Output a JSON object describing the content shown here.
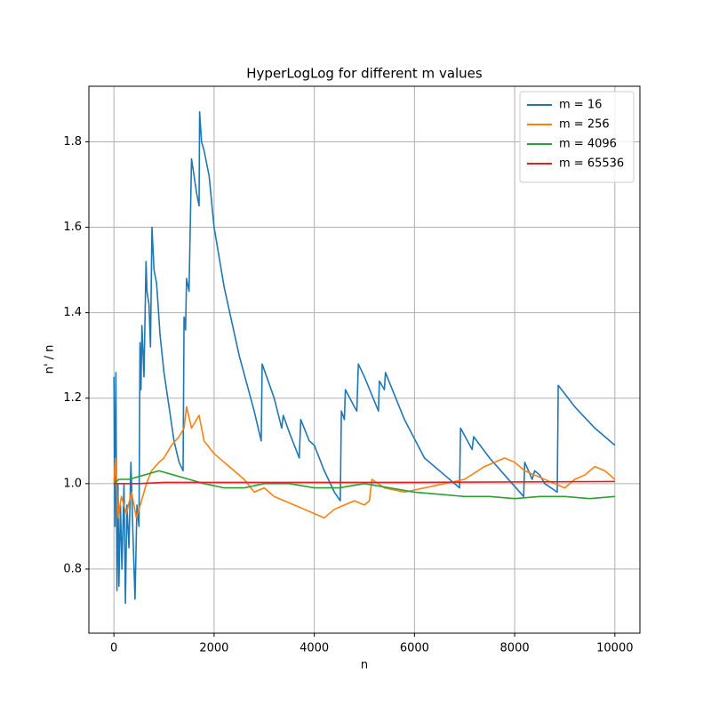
{
  "chart_data": {
    "type": "line",
    "title": "HyperLogLog for different m values",
    "xlabel": "n",
    "ylabel": "n' / n",
    "xlim": [
      -500,
      10500
    ],
    "ylim": [
      0.65,
      1.93
    ],
    "xticks": [
      0,
      2000,
      4000,
      6000,
      8000,
      10000
    ],
    "yticks": [
      0.8,
      {
        "value": 1.0,
        "label": "1.0"
      },
      1.2,
      1.4,
      1.6,
      1.8
    ],
    "grid": true,
    "legend": "upper right",
    "series": [
      {
        "name": "m = 16",
        "color": "#1f77b4",
        "x": [
          0,
          20,
          40,
          60,
          80,
          100,
          130,
          160,
          200,
          230,
          260,
          300,
          340,
          380,
          420,
          460,
          500,
          520,
          540,
          560,
          600,
          640,
          660,
          700,
          730,
          760,
          800,
          850,
          880,
          920,
          1000,
          1100,
          1200,
          1300,
          1380,
          1400,
          1430,
          1450,
          1500,
          1550,
          1600,
          1650,
          1700,
          1710,
          1750,
          1800,
          1900,
          2000,
          2200,
          2500,
          2800,
          2940,
          2960,
          3200,
          3350,
          3380,
          3500,
          3700,
          3730,
          3900,
          4000,
          4200,
          4400,
          4520,
          4540,
          4600,
          4620,
          4800,
          4850,
          4880,
          5000,
          5280,
          5300,
          5400,
          5420,
          5800,
          6200,
          6600,
          6900,
          6920,
          7150,
          7180,
          7500,
          7800,
          8180,
          8200,
          8350,
          8400,
          8500,
          8550,
          8600,
          8850,
          8870,
          9200,
          9600,
          10000
        ],
        "values": [
          1.25,
          0.9,
          1.26,
          0.75,
          1.0,
          0.76,
          0.95,
          0.8,
          1.0,
          0.72,
          0.95,
          0.85,
          1.05,
          0.88,
          0.73,
          0.95,
          0.9,
          1.33,
          1.22,
          1.37,
          1.25,
          1.52,
          1.45,
          1.42,
          1.32,
          1.6,
          1.5,
          1.47,
          1.42,
          1.35,
          1.26,
          1.18,
          1.1,
          1.05,
          1.03,
          1.39,
          1.36,
          1.48,
          1.45,
          1.76,
          1.72,
          1.68,
          1.65,
          1.87,
          1.8,
          1.78,
          1.72,
          1.6,
          1.46,
          1.3,
          1.17,
          1.1,
          1.28,
          1.2,
          1.13,
          1.16,
          1.12,
          1.06,
          1.15,
          1.1,
          1.09,
          1.03,
          0.98,
          0.96,
          1.17,
          1.15,
          1.22,
          1.18,
          1.17,
          1.28,
          1.25,
          1.17,
          1.24,
          1.22,
          1.26,
          1.15,
          1.06,
          1.02,
          0.99,
          1.13,
          1.08,
          1.11,
          1.06,
          1.02,
          0.97,
          1.05,
          1.01,
          1.03,
          1.02,
          1.01,
          1.0,
          0.98,
          1.23,
          1.18,
          1.13,
          1.09
        ]
      },
      {
        "name": "m = 256",
        "color": "#ff7f0e",
        "x": [
          0,
          30,
          80,
          150,
          250,
          350,
          450,
          550,
          650,
          750,
          900,
          1000,
          1150,
          1300,
          1400,
          1450,
          1550,
          1700,
          1800,
          2000,
          2200,
          2400,
          2600,
          2800,
          3000,
          3200,
          3400,
          3600,
          3800,
          4000,
          4200,
          4400,
          4600,
          4800,
          5000,
          5100,
          5150,
          5400,
          5800,
          6200,
          6600,
          7000,
          7400,
          7800,
          8000,
          8200,
          8400,
          8800,
          9000,
          9200,
          9400,
          9600,
          9800,
          10000
        ],
        "values": [
          1.0,
          1.06,
          0.92,
          0.97,
          0.93,
          0.98,
          0.92,
          0.96,
          1.0,
          1.03,
          1.05,
          1.06,
          1.09,
          1.11,
          1.13,
          1.18,
          1.13,
          1.16,
          1.1,
          1.07,
          1.05,
          1.03,
          1.01,
          0.98,
          0.99,
          0.97,
          0.96,
          0.95,
          0.94,
          0.93,
          0.92,
          0.94,
          0.95,
          0.96,
          0.95,
          0.96,
          1.01,
          0.99,
          0.98,
          0.99,
          1.0,
          1.01,
          1.04,
          1.06,
          1.05,
          1.03,
          1.02,
          1.0,
          0.99,
          1.01,
          1.02,
          1.04,
          1.03,
          1.01
        ]
      },
      {
        "name": "m = 4096",
        "color": "#2ca02c",
        "x": [
          0,
          100,
          300,
          600,
          900,
          1200,
          1500,
          1800,
          2200,
          2600,
          3000,
          3500,
          4000,
          4500,
          5000,
          5500,
          6000,
          6500,
          7000,
          7500,
          8000,
          8500,
          9000,
          9500,
          10000
        ],
        "values": [
          1.0,
          1.01,
          1.01,
          1.02,
          1.03,
          1.02,
          1.01,
          1.0,
          0.99,
          0.99,
          1.0,
          1.0,
          0.99,
          0.99,
          1.0,
          0.99,
          0.98,
          0.975,
          0.97,
          0.97,
          0.965,
          0.97,
          0.97,
          0.965,
          0.97
        ]
      },
      {
        "name": "m = 65536",
        "color": "#d62728",
        "x": [
          0,
          500,
          1000,
          3000,
          6000,
          10000
        ],
        "values": [
          1.0,
          1.0,
          1.003,
          1.003,
          1.003,
          1.005
        ]
      }
    ]
  }
}
